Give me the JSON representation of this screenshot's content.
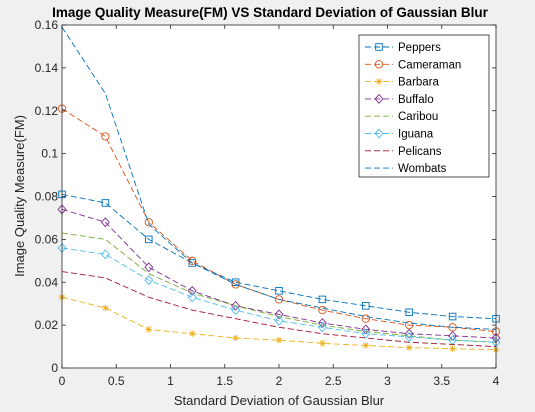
{
  "chart_data": {
    "type": "line",
    "title": "Image Quality Measure(FM) VS Standard Deviation of Gaussian Blur",
    "xlabel": "Standard Deviation of Gaussian Blur",
    "ylabel": "Image Quality Measure(FM)",
    "xlim": [
      0,
      4
    ],
    "ylim": [
      0,
      0.16
    ],
    "xticks": [
      0,
      0.5,
      1,
      1.5,
      2,
      2.5,
      3,
      3.5,
      4
    ],
    "xtick_labels": [
      "0",
      "0.5",
      "1",
      "1.5",
      "2",
      "2.5",
      "3",
      "3.5",
      "4"
    ],
    "yticks": [
      0,
      0.02,
      0.04,
      0.06,
      0.08,
      0.1,
      0.12,
      0.14,
      0.16
    ],
    "ytick_labels": [
      "0",
      "0.02",
      "0.04",
      "0.06",
      "0.08",
      "0.1",
      "0.12",
      "0.14",
      "0.16"
    ],
    "grid": false,
    "legend_position": "top-right",
    "x": [
      0,
      0.4,
      0.8,
      1.2,
      1.6,
      2.0,
      2.4,
      2.8,
      3.2,
      3.6,
      4.0
    ],
    "series": [
      {
        "name": "Peppers",
        "color": "#0072BD",
        "marker": "square",
        "values": [
          0.081,
          0.077,
          0.06,
          0.049,
          0.04,
          0.036,
          0.032,
          0.029,
          0.026,
          0.024,
          0.023
        ]
      },
      {
        "name": "Cameraman",
        "color": "#D95319",
        "marker": "circle",
        "values": [
          0.121,
          0.108,
          0.068,
          0.05,
          0.039,
          0.032,
          0.027,
          0.023,
          0.02,
          0.019,
          0.017
        ]
      },
      {
        "name": "Barbara",
        "color": "#EDB120",
        "marker": "asterisk",
        "values": [
          0.033,
          0.028,
          0.018,
          0.016,
          0.014,
          0.013,
          0.0115,
          0.0105,
          0.0095,
          0.009,
          0.0085
        ]
      },
      {
        "name": "Buffalo",
        "color": "#7E2F8E",
        "marker": "diamond",
        "values": [
          0.074,
          0.068,
          0.047,
          0.036,
          0.029,
          0.025,
          0.021,
          0.018,
          0.016,
          0.015,
          0.014
        ]
      },
      {
        "name": "Caribou",
        "color": "#77AC30",
        "marker": "none",
        "values": [
          0.063,
          0.06,
          0.044,
          0.035,
          0.029,
          0.024,
          0.02,
          0.017,
          0.015,
          0.013,
          0.012
        ]
      },
      {
        "name": "Iguana",
        "color": "#4DBEEE",
        "marker": "diamond",
        "values": [
          0.056,
          0.053,
          0.041,
          0.033,
          0.027,
          0.022,
          0.019,
          0.016,
          0.0145,
          0.013,
          0.012
        ]
      },
      {
        "name": "Pelicans",
        "color": "#A2142F",
        "marker": "none",
        "values": [
          0.045,
          0.042,
          0.033,
          0.027,
          0.023,
          0.019,
          0.016,
          0.014,
          0.012,
          0.011,
          0.01
        ]
      },
      {
        "name": "Wombats",
        "color": "#0072BD",
        "marker": "none",
        "values": [
          0.159,
          0.128,
          0.067,
          0.049,
          0.039,
          0.032,
          0.028,
          0.024,
          0.021,
          0.019,
          0.018
        ]
      }
    ]
  }
}
